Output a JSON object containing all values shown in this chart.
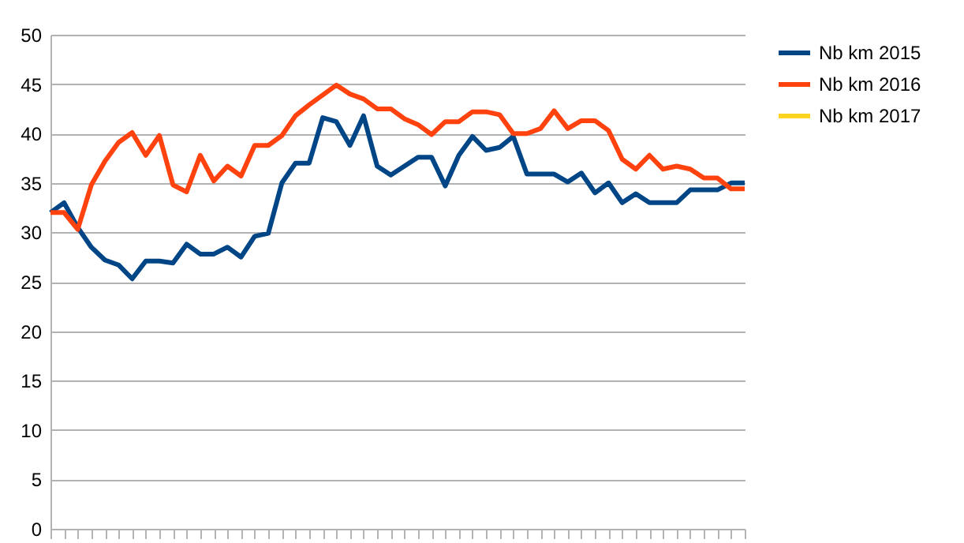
{
  "chart_data": {
    "type": "line",
    "categories": [
      null,
      null,
      null,
      null,
      null,
      null,
      null,
      null,
      null,
      null,
      null,
      null,
      null,
      null,
      null,
      null,
      null,
      null,
      null,
      null,
      null,
      null,
      null,
      null,
      null,
      null,
      null,
      null,
      null,
      null,
      null,
      null,
      null,
      null,
      null,
      null,
      null,
      null,
      null,
      null,
      null,
      null,
      null,
      null,
      null,
      null,
      null,
      null,
      null,
      null,
      null,
      null
    ],
    "series": [
      {
        "name": "Nb km 2015",
        "color": "#004586",
        "values": [
          32,
          33,
          30.5,
          28.5,
          27.2,
          26.7,
          25.3,
          27.1,
          27.1,
          26.9,
          28.8,
          27.8,
          27.8,
          28.5,
          27.5,
          29.6,
          29.9,
          35,
          37,
          37,
          41.6,
          41.2,
          38.8,
          41.8,
          36.7,
          35.8,
          36.7,
          37.6,
          37.6,
          34.7,
          37.8,
          39.7,
          38.3,
          38.6,
          39.7,
          35.9,
          35.9,
          35.9,
          35.1,
          36,
          34,
          35,
          33,
          33.9,
          33,
          33,
          33,
          34.3,
          34.3,
          34.3,
          35,
          35
        ]
      },
      {
        "name": "Nb km 2016",
        "color": "#ff420e",
        "values": [
          32,
          32,
          30.3,
          34.8,
          37.2,
          39.1,
          40.1,
          37.8,
          39.8,
          34.8,
          34.1,
          37.8,
          35.2,
          36.7,
          35.7,
          38.8,
          38.8,
          39.8,
          41.8,
          42.9,
          43.9,
          44.9,
          44,
          43.5,
          42.5,
          42.5,
          41.5,
          40.9,
          39.9,
          41.2,
          41.2,
          42.2,
          42.2,
          41.9,
          40,
          40,
          40.5,
          42.3,
          40.5,
          41.3,
          41.3,
          40.3,
          37.4,
          36.4,
          37.8,
          36.4,
          36.7,
          36.4,
          35.5,
          35.5,
          34.4,
          34.4
        ]
      },
      {
        "name": "Nb km 2017",
        "color": "#ffd320",
        "values": [
          null,
          null,
          null,
          null,
          null,
          null,
          null,
          null,
          null,
          null,
          null,
          null,
          null,
          null,
          null,
          null,
          null,
          null,
          null,
          null,
          null,
          null,
          null,
          null,
          null,
          null,
          null,
          null,
          null,
          null,
          null,
          null,
          null,
          null,
          null,
          null,
          null,
          null,
          null,
          null,
          null,
          null,
          null,
          null,
          null,
          null,
          null,
          null,
          null,
          null,
          null,
          null
        ]
      }
    ],
    "ylim": [
      0,
      50
    ],
    "yticks": [
      0,
      5,
      10,
      15,
      20,
      25,
      30,
      35,
      40,
      45,
      50
    ],
    "grid": "y",
    "legend": "right",
    "tick_labels": "y",
    "marker": "none",
    "line_style": "solid"
  }
}
